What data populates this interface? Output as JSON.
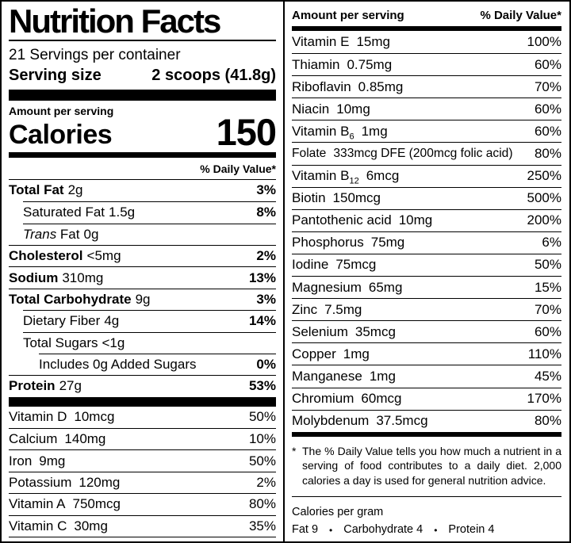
{
  "colors": {
    "ink": "#000000",
    "paper": "#ffffff"
  },
  "header": {
    "title": "Nutrition Facts",
    "servings_per_container": "21 Servings per container",
    "serving_size_label": "Serving size",
    "serving_size_value": "2 scoops (41.8g)",
    "amount_per_serving": "Amount per serving",
    "calories_label": "Calories",
    "calories_value": "150",
    "daily_value_header": "% Daily Value*"
  },
  "left": {
    "main_rows": [
      {
        "name": "Total Fat",
        "bold": true,
        "amount": "2g",
        "dv": "3%",
        "dvBold": true,
        "indent": 0
      },
      {
        "name": "Saturated Fat",
        "amount": "1.5g",
        "dv": "8%",
        "dvBold": true,
        "indent": 1
      },
      {
        "name": "Trans",
        "nameItalic": true,
        "name2": "Fat",
        "amount": "0g",
        "dv": "",
        "indent": 1
      },
      {
        "name": "Cholesterol",
        "bold": true,
        "amount": "<5mg",
        "dv": "2%",
        "dvBold": true,
        "indent": 0
      },
      {
        "name": "Sodium",
        "bold": true,
        "amount": "310mg",
        "dv": "13%",
        "dvBold": true,
        "indent": 0
      },
      {
        "name": "Total Carbohydrate",
        "bold": true,
        "amount": "9g",
        "dv": "3%",
        "dvBold": true,
        "indent": 0
      },
      {
        "name": "Dietary Fiber",
        "amount": "4g",
        "dv": "14%",
        "dvBold": true,
        "indent": 1
      },
      {
        "name": "Total Sugars",
        "amount": "<1g",
        "dv": "",
        "indent": 1
      },
      {
        "name": "Includes 0g Added Sugars",
        "amount": "",
        "dv": "0%",
        "dvBold": true,
        "indent": 2
      },
      {
        "name": "Protein",
        "bold": true,
        "amount": "27g",
        "dv": "53%",
        "dvBold": true,
        "indent": 0
      }
    ],
    "vitamin_rows": [
      {
        "name": "Vitamin D",
        "amount": "10mcg",
        "dv": "50%"
      },
      {
        "name": "Calcium",
        "amount": "140mg",
        "dv": "10%"
      },
      {
        "name": "Iron",
        "amount": "9mg",
        "dv": "50%"
      },
      {
        "name": "Potassium",
        "amount": "120mg",
        "dv": "2%"
      },
      {
        "name": "Vitamin A",
        "amount": "750mcg",
        "dv": "80%"
      },
      {
        "name": "Vitamin C",
        "amount": "30mg",
        "dv": "35%"
      }
    ]
  },
  "right": {
    "amount_per_serving": "Amount per serving",
    "daily_value_header": "% Daily Value*",
    "rows": [
      {
        "name": "Vitamin E",
        "amount": "15mg",
        "dv": "100%"
      },
      {
        "name": "Thiamin",
        "amount": "0.75mg",
        "dv": "60%"
      },
      {
        "name": "Riboflavin",
        "amount": "0.85mg",
        "dv": "70%"
      },
      {
        "name": "Niacin",
        "amount": "10mg",
        "dv": "60%"
      },
      {
        "name": "Vitamin B",
        "sub": "6",
        "amount": "1mg",
        "dv": "60%"
      },
      {
        "name": "Folate",
        "amount": "333mcg DFE (200mcg folic acid)",
        "dv": "80%",
        "tight": true
      },
      {
        "name": "Vitamin B",
        "sub": "12",
        "amount": "6mcg",
        "dv": "250%"
      },
      {
        "name": "Biotin",
        "amount": "150mcg",
        "dv": "500%"
      },
      {
        "name": "Pantothenic acid",
        "amount": "10mg",
        "dv": "200%"
      },
      {
        "name": "Phosphorus",
        "amount": "75mg",
        "dv": "6%"
      },
      {
        "name": "Iodine",
        "amount": "75mcg",
        "dv": "50%"
      },
      {
        "name": "Magnesium",
        "amount": "65mg",
        "dv": "15%"
      },
      {
        "name": "Zinc",
        "amount": "7.5mg",
        "dv": "70%"
      },
      {
        "name": "Selenium",
        "amount": "35mcg",
        "dv": "60%"
      },
      {
        "name": "Copper",
        "amount": "1mg",
        "dv": "110%"
      },
      {
        "name": "Manganese",
        "amount": "1mg",
        "dv": "45%"
      },
      {
        "name": "Chromium",
        "amount": "60mcg",
        "dv": "170%"
      },
      {
        "name": "Molybdenum",
        "amount": "37.5mcg",
        "dv": "80%"
      }
    ],
    "footnote": {
      "marker": "*",
      "text": "The % Daily Value tells you how much a nutrient in a serving of food contributes to a daily diet. 2,000 calories a day is used for general nutrition advice."
    },
    "calories_per_gram": {
      "label": "Calories per gram",
      "items": [
        "Fat 9",
        "Carbohydrate 4",
        "Protein 4"
      ]
    }
  }
}
